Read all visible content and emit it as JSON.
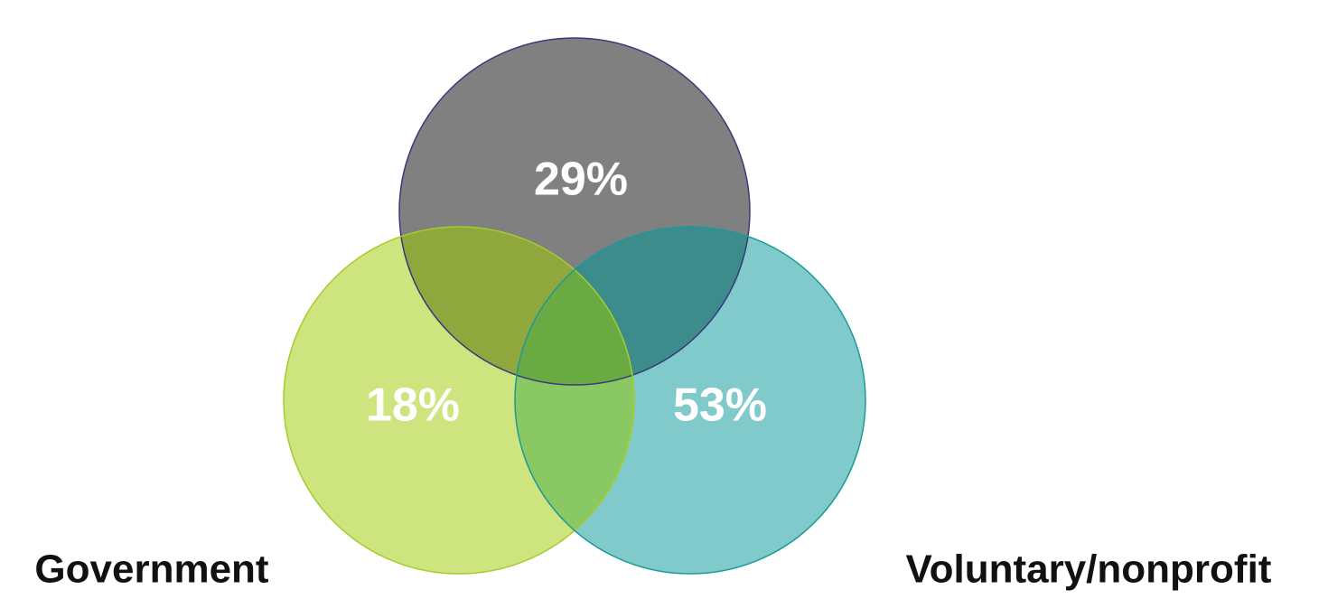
{
  "diagram": {
    "type": "venn",
    "sets": [
      {
        "key": "top",
        "caption": "",
        "value_label": "29%",
        "color": "#808080",
        "stroke": "#3a3a7a"
      },
      {
        "key": "left",
        "caption": "Government",
        "value_label": "18%",
        "color": "#cde47f",
        "stroke": "#a6cc2a"
      },
      {
        "key": "right",
        "caption": "Voluntary/nonprofit",
        "value_label": "53%",
        "color": "#80cacb",
        "stroke": "#1a9a9a"
      }
    ],
    "overlap_colors": {
      "top_left": "#8fa73d",
      "top_right": "#3c8c8c",
      "left_right": "#8ac864",
      "center": "#6aaa42"
    }
  }
}
